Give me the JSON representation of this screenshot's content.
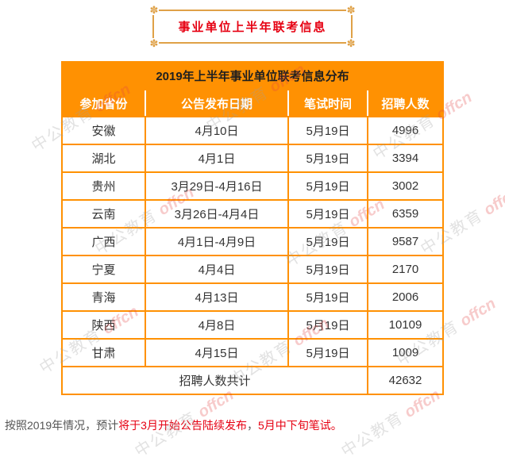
{
  "banner": {
    "title": "事业单位上半年联考信息"
  },
  "chart_data": {
    "type": "table",
    "title": "2019年上半年事业单位联考信息分布",
    "columns": [
      "参加省份",
      "公告发布日期",
      "笔试时间",
      "招聘人数"
    ],
    "rows": [
      [
        "安徽",
        "4月10日",
        "5月19日",
        "4996"
      ],
      [
        "湖北",
        "4月1日",
        "5月19日",
        "3394"
      ],
      [
        "贵州",
        "3月29日-4月16日",
        "5月19日",
        "3002"
      ],
      [
        "云南",
        "3月26日-4月4日",
        "5月19日",
        "6359"
      ],
      [
        "广西",
        "4月1日-4月9日",
        "5月19日",
        "9587"
      ],
      [
        "宁夏",
        "4月4日",
        "5月19日",
        "2170"
      ],
      [
        "青海",
        "4月13日",
        "5月19日",
        "2006"
      ],
      [
        "陕西",
        "4月8日",
        "5月19日",
        "10109"
      ],
      [
        "甘肃",
        "4月15日",
        "5月19日",
        "1009"
      ]
    ],
    "total_label": "招聘人数共计",
    "total_value": "42632"
  },
  "note": {
    "prefix": "按照2019年情况，预计",
    "highlight1": "将于3月开始公告陆续发布",
    "separator": "，",
    "highlight2": "5月中下旬笔试。"
  },
  "watermark": {
    "cn": "中公教育",
    "en": "offcn"
  },
  "colors": {
    "table_orange": "#ff9102",
    "banner_gold": "#dfa147",
    "highlight_red": "#e60012",
    "note_gray": "#555555",
    "header_text": "#ffffff",
    "body_text": "#333333"
  }
}
